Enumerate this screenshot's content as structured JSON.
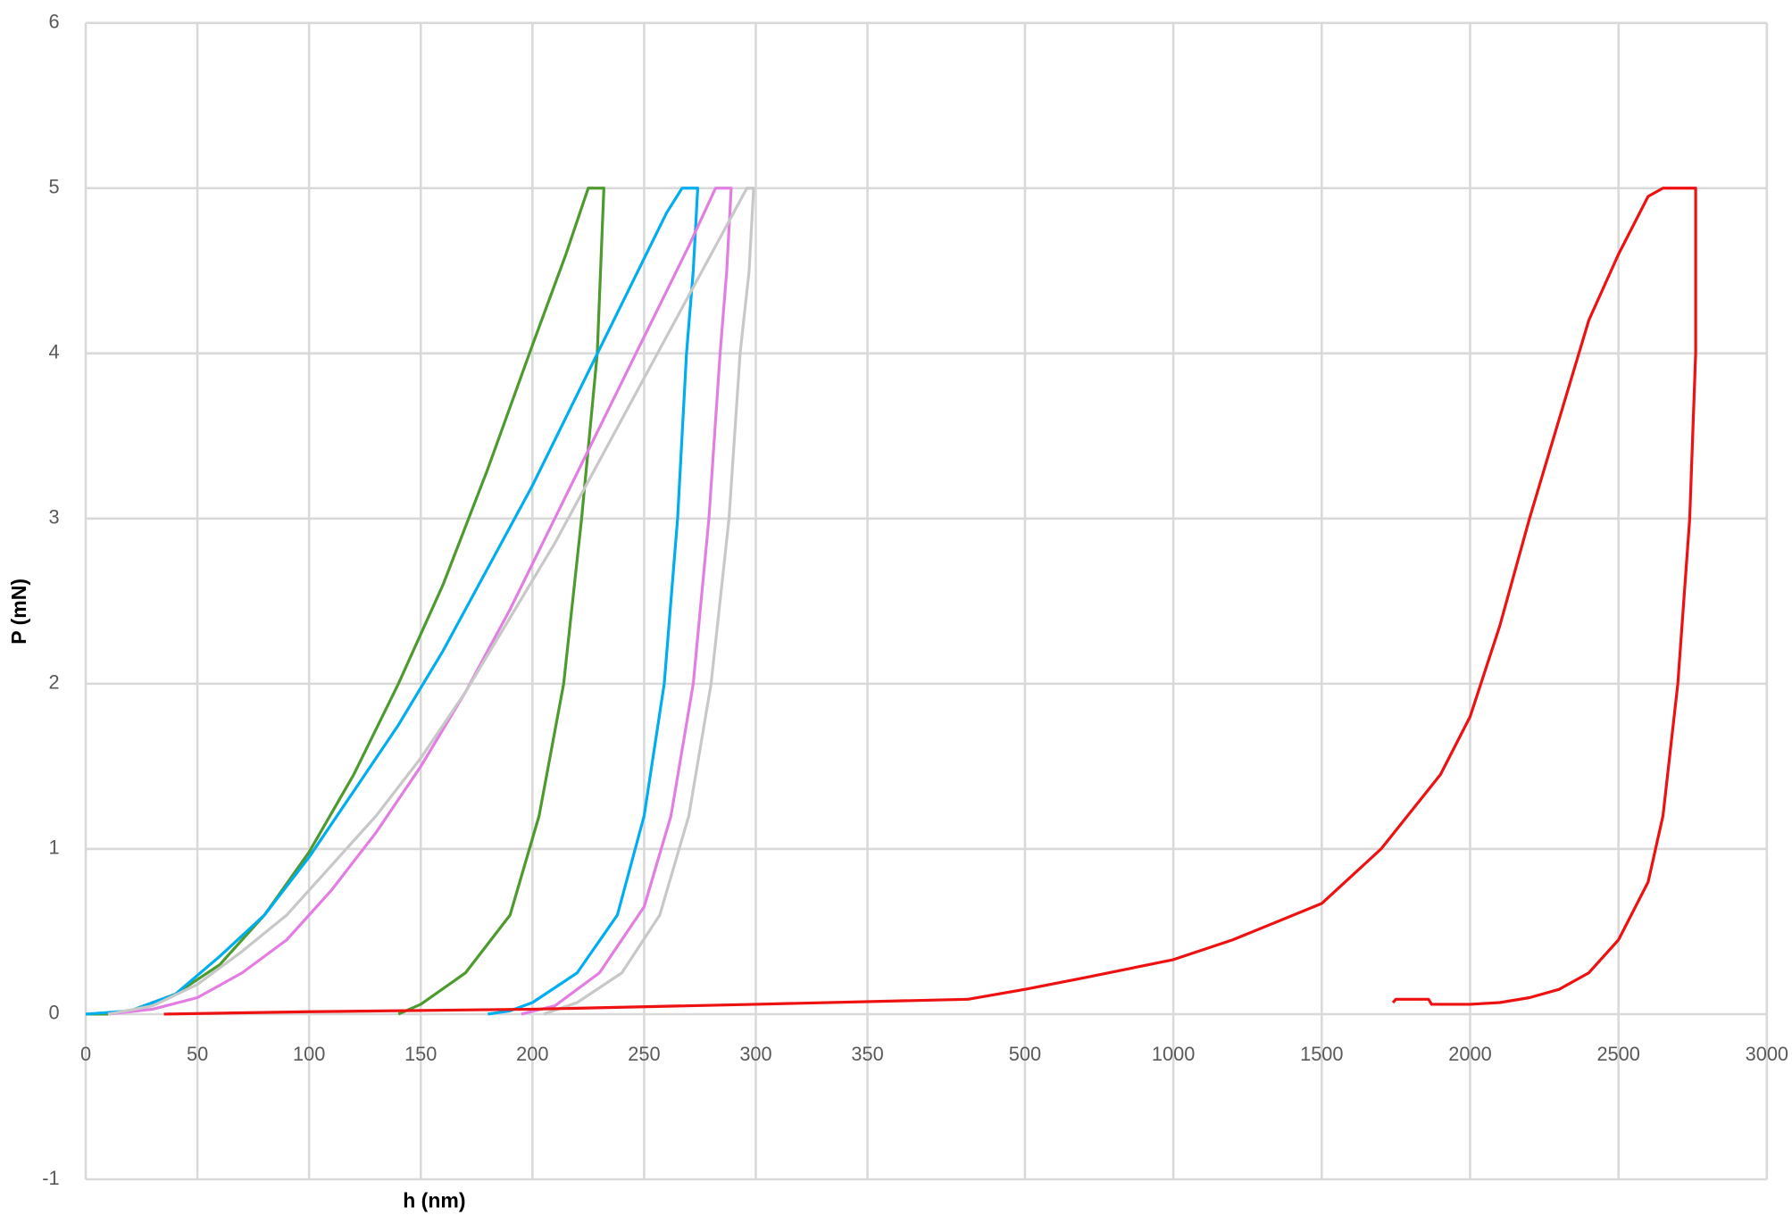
{
  "chart_data": {
    "type": "line",
    "x_label": "h (nm)",
    "y_label": "P (mN)",
    "x_segments": [
      {
        "xlim": [
          0,
          395
        ],
        "xticks": [
          0,
          50,
          100,
          150,
          200,
          250,
          300,
          350
        ]
      },
      {
        "xlim": [
          308,
          3000
        ],
        "xticks": [
          500,
          1000,
          1500,
          2000,
          2500,
          3000
        ]
      }
    ],
    "ylim": [
      -1,
      6
    ],
    "yticks": [
      -1,
      0,
      1,
      2,
      3,
      4,
      5,
      6
    ],
    "grid": true,
    "series": [
      {
        "color": "#4d9a2e",
        "x": [
          0,
          10,
          20,
          40,
          60,
          80,
          100,
          120,
          140,
          160,
          180,
          200,
          215,
          225,
          232,
          229,
          222,
          214,
          203,
          190,
          170,
          150,
          140
        ],
        "values": [
          0,
          0,
          0.02,
          0.12,
          0.3,
          0.6,
          0.98,
          1.45,
          2.0,
          2.6,
          3.3,
          4.05,
          4.6,
          5.0,
          5.0,
          4.0,
          3.0,
          2.0,
          1.2,
          0.6,
          0.25,
          0.06,
          0
        ]
      },
      {
        "color": "#00aeef",
        "x": [
          0,
          20,
          40,
          60,
          80,
          100,
          120,
          140,
          160,
          180,
          200,
          220,
          240,
          260,
          267,
          274,
          272,
          269,
          265,
          259,
          250,
          238,
          220,
          200,
          190,
          180
        ],
        "values": [
          0,
          0.02,
          0.12,
          0.35,
          0.6,
          0.95,
          1.35,
          1.75,
          2.2,
          2.7,
          3.2,
          3.75,
          4.3,
          4.85,
          5.0,
          5.0,
          4.5,
          4.0,
          3.0,
          2.0,
          1.2,
          0.6,
          0.25,
          0.07,
          0.02,
          0
        ]
      },
      {
        "color": "#e27ee2",
        "x": [
          10,
          30,
          50,
          70,
          90,
          110,
          130,
          150,
          170,
          190,
          210,
          230,
          250,
          270,
          282,
          289,
          287,
          284,
          279,
          272,
          262,
          250,
          230,
          210,
          195
        ],
        "values": [
          0,
          0.03,
          0.1,
          0.25,
          0.45,
          0.75,
          1.1,
          1.5,
          1.95,
          2.45,
          3.0,
          3.55,
          4.1,
          4.65,
          5.0,
          5.0,
          4.5,
          4.0,
          3.0,
          2.0,
          1.2,
          0.65,
          0.25,
          0.05,
          0
        ]
      },
      {
        "color": "#c8c8c8",
        "x": [
          10,
          30,
          50,
          70,
          90,
          110,
          130,
          150,
          170,
          190,
          210,
          230,
          250,
          270,
          290,
          296,
          299,
          297,
          293,
          288,
          280,
          270,
          257,
          240,
          220,
          205
        ],
        "values": [
          0,
          0.05,
          0.18,
          0.38,
          0.6,
          0.9,
          1.2,
          1.55,
          1.95,
          2.4,
          2.85,
          3.35,
          3.85,
          4.35,
          4.85,
          5.0,
          5.0,
          4.5,
          4.0,
          3.0,
          2.0,
          1.2,
          0.6,
          0.25,
          0.07,
          0
        ]
      },
      {
        "color": "#ee1111",
        "x": [
          35,
          100,
          200,
          300,
          395,
          500,
          700,
          1000,
          1200,
          1500,
          1700,
          1900,
          2000,
          2100,
          2200,
          2300,
          2400,
          2500,
          2600,
          2650,
          2760,
          2760,
          2740,
          2700,
          2650,
          2600,
          2500,
          2400,
          2300,
          2200,
          2100,
          2000,
          1900,
          1870,
          1860,
          1750,
          1740
        ],
        "values": [
          0,
          0.015,
          0.03,
          0.06,
          0.09,
          0.15,
          0.22,
          0.33,
          0.45,
          0.67,
          1.0,
          1.45,
          1.8,
          2.35,
          3.0,
          3.6,
          4.2,
          4.6,
          4.95,
          5.0,
          5.0,
          4.0,
          3.0,
          2.0,
          1.2,
          0.8,
          0.45,
          0.25,
          0.15,
          0.1,
          0.07,
          0.06,
          0.06,
          0.06,
          0.09,
          0.09,
          0.07
        ]
      }
    ]
  }
}
